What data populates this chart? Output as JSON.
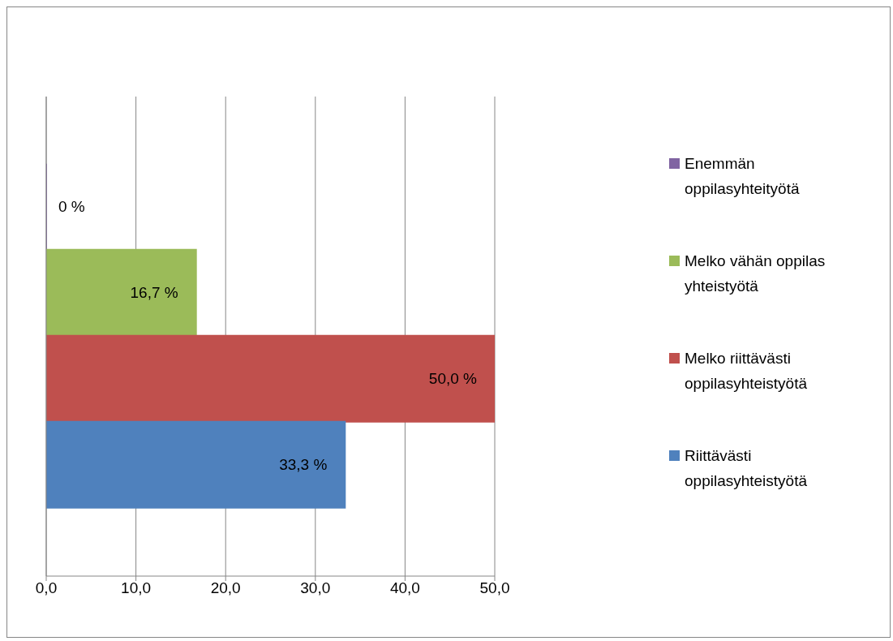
{
  "chart_data": {
    "type": "bar",
    "orientation": "horizontal",
    "categories": [
      null
    ],
    "series": [
      {
        "name": "Enemmän oppilasyhteityötä",
        "color": "#8064a2",
        "values": [
          0
        ],
        "value_labels": [
          "0 %"
        ]
      },
      {
        "name": "Melko vähän oppilas yhteistyötä",
        "color": "#9bbb59",
        "values": [
          16.7
        ],
        "value_labels": [
          "16,7 %"
        ]
      },
      {
        "name": "Melko riittävästi oppilasyhteistyötä",
        "color": "#c0504d",
        "values": [
          50.0
        ],
        "value_labels": [
          "50,0 %"
        ]
      },
      {
        "name": "Riittävästi oppilasyhteistyötä",
        "color": "#4f81bd",
        "values": [
          33.3
        ],
        "value_labels": [
          "33,3 %"
        ]
      }
    ],
    "xlim": [
      0,
      50
    ],
    "xticks": [
      {
        "value": 0,
        "label": "0,0"
      },
      {
        "value": 10,
        "label": "10,0"
      },
      {
        "value": 20,
        "label": "20,0"
      },
      {
        "value": 30,
        "label": "30,0"
      },
      {
        "value": 40,
        "label": "40,0"
      },
      {
        "value": 50,
        "label": "50,0"
      }
    ],
    "grid": "x",
    "legend": "right"
  }
}
